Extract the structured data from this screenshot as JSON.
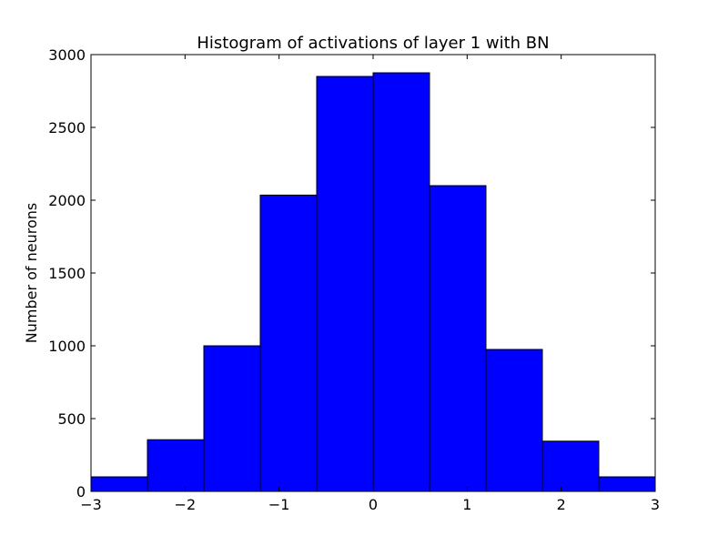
{
  "chart_data": {
    "type": "bar",
    "title": "Histogram of activations of layer 1  with BN",
    "xlabel": "",
    "ylabel": "Number of neurons",
    "bins": [
      {
        "x0": -3.0,
        "x1": -2.4,
        "value": 100
      },
      {
        "x0": -2.4,
        "x1": -1.8,
        "value": 355
      },
      {
        "x0": -1.8,
        "x1": -1.2,
        "value": 1000
      },
      {
        "x0": -1.2,
        "x1": -0.6,
        "value": 2035
      },
      {
        "x0": -0.6,
        "x1": 0.0,
        "value": 2850
      },
      {
        "x0": 0.0,
        "x1": 0.6,
        "value": 2875
      },
      {
        "x0": 0.6,
        "x1": 1.2,
        "value": 2100
      },
      {
        "x0": 1.2,
        "x1": 1.8,
        "value": 975
      },
      {
        "x0": 1.8,
        "x1": 2.4,
        "value": 345
      },
      {
        "x0": 2.4,
        "x1": 3.0,
        "value": 100
      }
    ],
    "xlim": [
      -3,
      3
    ],
    "ylim": [
      0,
      3000
    ],
    "xticks": [
      {
        "value": -3,
        "label": "−3"
      },
      {
        "value": -2,
        "label": "−2"
      },
      {
        "value": -1,
        "label": "−1"
      },
      {
        "value": 0,
        "label": "0"
      },
      {
        "value": 1,
        "label": "1"
      },
      {
        "value": 2,
        "label": "2"
      },
      {
        "value": 3,
        "label": "3"
      }
    ],
    "yticks": [
      {
        "value": 0,
        "label": "0"
      },
      {
        "value": 500,
        "label": "500"
      },
      {
        "value": 1000,
        "label": "1000"
      },
      {
        "value": 1500,
        "label": "1500"
      },
      {
        "value": 2000,
        "label": "2000"
      },
      {
        "value": 2500,
        "label": "2500"
      },
      {
        "value": 3000,
        "label": "3000"
      }
    ],
    "bar_color": "#0000ff",
    "edge_color": "#000000",
    "grid": false,
    "legend": "none"
  }
}
